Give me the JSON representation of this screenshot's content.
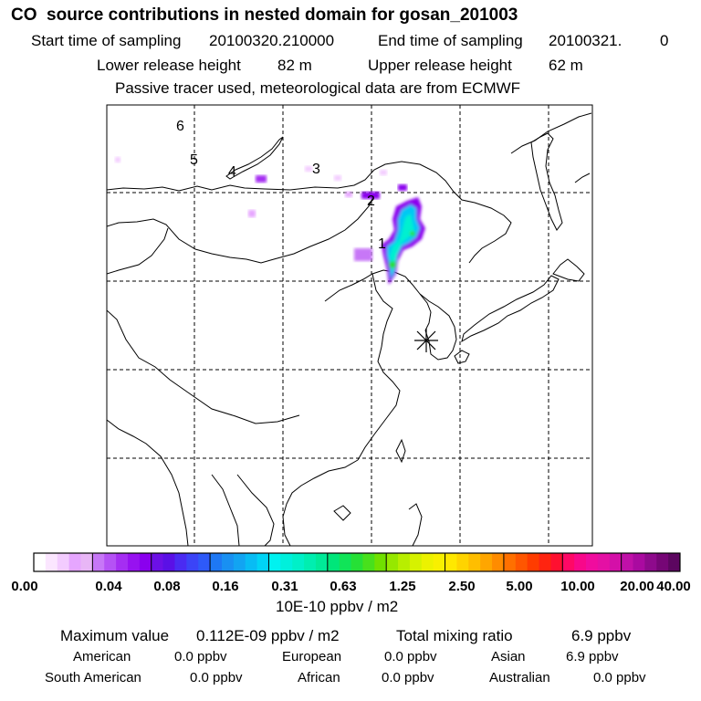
{
  "header": {
    "title": "CO  source contributions in nested domain for gosan_201003",
    "start_label": "Start time of sampling",
    "start_value": "20100320.210000",
    "end_label": "End time of sampling",
    "end_value": "20100321.",
    "end_suffix": "0",
    "lower_label": "Lower release height",
    "lower_value": "82 m",
    "upper_label": "Upper release height",
    "upper_value": "62 m",
    "tracer_note": "Passive tracer used, meteorological data are from ECMWF"
  },
  "map": {
    "trajectory_markers": [
      "1",
      "2",
      "3",
      "4",
      "5",
      "6"
    ],
    "receptor_symbol": "asterisk",
    "colors": {
      "frame": "#000000",
      "coast": "#000000",
      "grid": "#000000",
      "plume_core": "#00e0a0",
      "plume_edge": "#7a00ff"
    }
  },
  "colorbar": {
    "labels": [
      "0.00",
      "0.04",
      "0.08",
      "0.16",
      "0.31",
      "0.63",
      "1.25",
      "2.50",
      "5.00",
      "10.00",
      "20.00",
      "40.00"
    ],
    "unit": "10E-10 ppbv / m2",
    "bins": [
      [
        "#ffffff",
        "#fbe6ff",
        "#f3ccff",
        "#e6a6ff",
        "#e8b6f6"
      ],
      [
        "#c777f7",
        "#b552f5",
        "#a52ef2",
        "#9712f0",
        "#8a00ee"
      ],
      [
        "#6c10e6",
        "#5a10e6",
        "#4a2bf2",
        "#3b44f7",
        "#2e5af8"
      ],
      [
        "#1e78f4",
        "#1990f2",
        "#12a4f2",
        "#08bcf4",
        "#00d4f6"
      ],
      [
        "#00f2f0",
        "#00f0dc",
        "#00f0c8",
        "#00eeb0",
        "#00ea98"
      ],
      [
        "#00e67a",
        "#10e458",
        "#26e036",
        "#48e01c",
        "#70e000"
      ],
      [
        "#96e800",
        "#b8ee00",
        "#d6f200",
        "#ecf200",
        "#f8f000"
      ],
      [
        "#ffe800",
        "#ffd400",
        "#ffbe00",
        "#ffa600",
        "#ff8c00"
      ],
      [
        "#ff7000",
        "#ff5600",
        "#ff3c00",
        "#ff2410",
        "#ff1030"
      ],
      [
        "#ff0866",
        "#f8088a",
        "#f00c9e",
        "#e410a4",
        "#d410a8"
      ],
      [
        "#c010a8",
        "#aa0aa0",
        "#8e0a8c",
        "#760676",
        "#5c0660"
      ]
    ]
  },
  "stats": {
    "max_label": "Maximum value",
    "max_value": "0.112E-09 ppbv / m2",
    "total_label": "Total mixing ratio",
    "total_value": "6.9 ppbv",
    "regions": [
      {
        "name": "American",
        "value": "0.0 ppbv"
      },
      {
        "name": "European",
        "value": "0.0 ppbv"
      },
      {
        "name": "Asian",
        "value": "6.9 ppbv"
      },
      {
        "name": "South American",
        "value": "0.0 ppbv"
      },
      {
        "name": "African",
        "value": "0.0 ppbv"
      },
      {
        "name": "Australian",
        "value": "0.0 ppbv"
      }
    ]
  }
}
